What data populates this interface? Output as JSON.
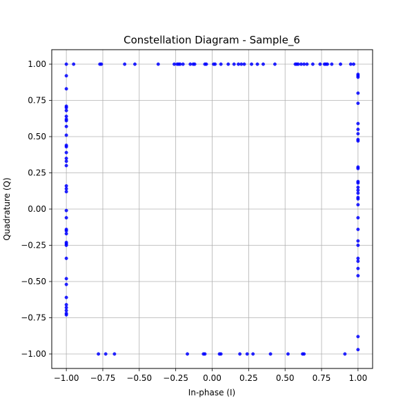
{
  "chart_data": {
    "type": "scatter",
    "title": "Constellation Diagram - Sample_6",
    "xlabel": "In-phase (I)",
    "ylabel": "Quadrature (Q)",
    "xlim": [
      -1.1,
      1.1
    ],
    "ylim": [
      -1.1,
      1.1
    ],
    "xticks": [
      -1.0,
      -0.75,
      -0.5,
      -0.25,
      0.0,
      0.25,
      0.5,
      0.75,
      1.0
    ],
    "yticks": [
      -1.0,
      -0.75,
      -0.5,
      -0.25,
      0.0,
      0.25,
      0.5,
      0.75,
      1.0
    ],
    "xtick_labels": [
      "−1.00",
      "−0.75",
      "−0.50",
      "−0.25",
      "0.00",
      "0.25",
      "0.50",
      "0.75",
      "1.00"
    ],
    "ytick_labels": [
      "−1.00",
      "−0.75",
      "−0.50",
      "−0.25",
      "0.00",
      "0.25",
      "0.50",
      "0.75",
      "1.00"
    ],
    "grid": true,
    "marker_color": "#0000ff",
    "points": [
      [
        -1.0,
        1.0
      ],
      [
        -0.95,
        1.0
      ],
      [
        -0.77,
        1.0
      ],
      [
        -0.76,
        1.0
      ],
      [
        -0.6,
        1.0
      ],
      [
        -0.53,
        1.0
      ],
      [
        -0.37,
        1.0
      ],
      [
        -0.26,
        1.0
      ],
      [
        -0.24,
        1.0
      ],
      [
        -0.23,
        1.0
      ],
      [
        -0.22,
        1.0
      ],
      [
        -0.2,
        1.0
      ],
      [
        -0.15,
        1.0
      ],
      [
        -0.13,
        1.0
      ],
      [
        -0.12,
        1.0
      ],
      [
        -0.05,
        1.0
      ],
      [
        -0.04,
        1.0
      ],
      [
        0.01,
        1.0
      ],
      [
        0.02,
        1.0
      ],
      [
        0.06,
        1.0
      ],
      [
        0.11,
        1.0
      ],
      [
        0.15,
        1.0
      ],
      [
        0.18,
        1.0
      ],
      [
        0.2,
        1.0
      ],
      [
        0.22,
        1.0
      ],
      [
        0.27,
        1.0
      ],
      [
        0.31,
        1.0
      ],
      [
        0.35,
        1.0
      ],
      [
        0.43,
        1.0
      ],
      [
        0.57,
        1.0
      ],
      [
        0.58,
        1.0
      ],
      [
        0.59,
        1.0
      ],
      [
        0.61,
        1.0
      ],
      [
        0.63,
        1.0
      ],
      [
        0.65,
        1.0
      ],
      [
        0.69,
        1.0
      ],
      [
        0.74,
        1.0
      ],
      [
        0.77,
        1.0
      ],
      [
        0.78,
        1.0
      ],
      [
        0.79,
        1.0
      ],
      [
        0.82,
        1.0
      ],
      [
        0.88,
        1.0
      ],
      [
        0.95,
        1.0
      ],
      [
        0.97,
        1.0
      ],
      [
        -1.0,
        0.92
      ],
      [
        -1.0,
        0.83
      ],
      [
        -1.0,
        0.71
      ],
      [
        -1.0,
        0.7
      ],
      [
        -1.0,
        0.68
      ],
      [
        -1.0,
        0.64
      ],
      [
        -1.0,
        0.62
      ],
      [
        -1.0,
        0.61
      ],
      [
        -1.0,
        0.57
      ],
      [
        -1.0,
        0.51
      ],
      [
        -1.0,
        0.44
      ],
      [
        -1.0,
        0.43
      ],
      [
        -1.0,
        0.39
      ],
      [
        -1.0,
        0.35
      ],
      [
        -1.0,
        0.33
      ],
      [
        -1.0,
        0.3
      ],
      [
        -1.0,
        0.16
      ],
      [
        -1.0,
        0.14
      ],
      [
        -1.0,
        0.12
      ],
      [
        -1.0,
        -0.01
      ],
      [
        -1.0,
        -0.06
      ],
      [
        -1.0,
        -0.14
      ],
      [
        -1.0,
        -0.15
      ],
      [
        -1.0,
        -0.17
      ],
      [
        -1.0,
        -0.23
      ],
      [
        -1.0,
        -0.24
      ],
      [
        -1.0,
        -0.25
      ],
      [
        -1.0,
        -0.34
      ],
      [
        -1.0,
        -0.48
      ],
      [
        -1.0,
        -0.52
      ],
      [
        -1.0,
        -0.61
      ],
      [
        -1.0,
        -0.66
      ],
      [
        -1.0,
        -0.68
      ],
      [
        -1.0,
        -0.7
      ],
      [
        -1.0,
        -0.72
      ],
      [
        -1.0,
        -0.73
      ],
      [
        1.0,
        0.93
      ],
      [
        1.0,
        0.92
      ],
      [
        1.0,
        0.91
      ],
      [
        1.0,
        0.8
      ],
      [
        1.0,
        0.73
      ],
      [
        1.0,
        0.59
      ],
      [
        1.0,
        0.55
      ],
      [
        1.0,
        0.52
      ],
      [
        1.0,
        0.48
      ],
      [
        1.0,
        0.47
      ],
      [
        1.0,
        0.29
      ],
      [
        1.0,
        0.28
      ],
      [
        1.0,
        0.19
      ],
      [
        1.0,
        0.18
      ],
      [
        1.0,
        0.15
      ],
      [
        1.0,
        0.13
      ],
      [
        1.0,
        0.11
      ],
      [
        1.0,
        0.08
      ],
      [
        1.0,
        0.07
      ],
      [
        1.0,
        0.03
      ],
      [
        1.0,
        -0.06
      ],
      [
        1.0,
        -0.14
      ],
      [
        1.0,
        -0.22
      ],
      [
        1.0,
        -0.25
      ],
      [
        1.0,
        -0.34
      ],
      [
        1.0,
        -0.36
      ],
      [
        1.0,
        -0.41
      ],
      [
        1.0,
        -0.46
      ],
      [
        1.0,
        -0.88
      ],
      [
        1.0,
        -0.97
      ],
      [
        -0.78,
        -1.0
      ],
      [
        -0.73,
        -1.0
      ],
      [
        -0.67,
        -1.0
      ],
      [
        -0.17,
        -1.0
      ],
      [
        -0.06,
        -1.0
      ],
      [
        -0.05,
        -1.0
      ],
      [
        0.05,
        -1.0
      ],
      [
        0.06,
        -1.0
      ],
      [
        0.19,
        -1.0
      ],
      [
        0.24,
        -1.0
      ],
      [
        0.28,
        -1.0
      ],
      [
        0.4,
        -1.0
      ],
      [
        0.52,
        -1.0
      ],
      [
        0.62,
        -1.0
      ],
      [
        0.63,
        -1.0
      ],
      [
        0.91,
        -1.0
      ]
    ]
  }
}
